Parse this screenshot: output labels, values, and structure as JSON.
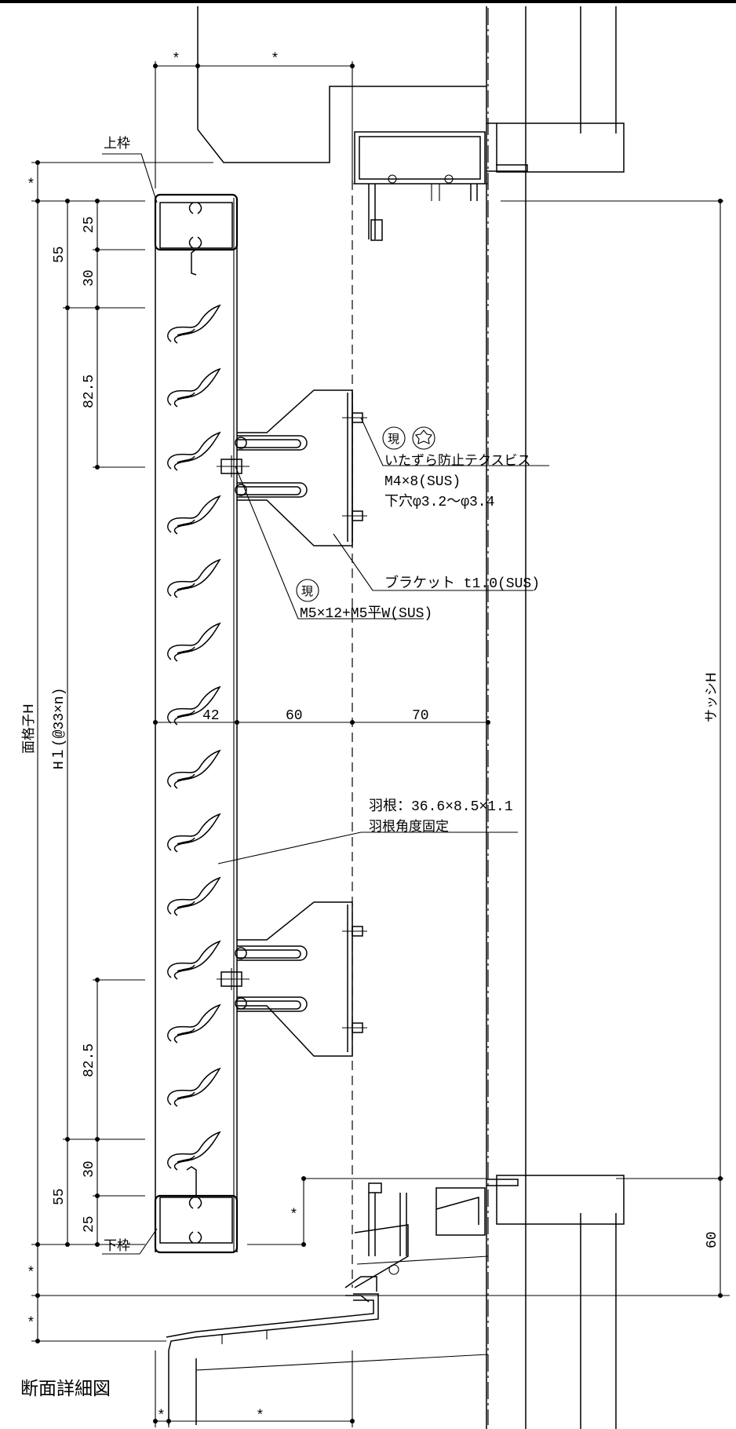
{
  "title": "断面詳細図",
  "labels": {
    "top_frame": "上枠",
    "bottom_frame": "下枠",
    "lattice_h": "面格子H",
    "h1": "H１(@33×n)",
    "sash_h": "サッシH",
    "genba": "現",
    "screw_name": "いたずら防止テクスビス",
    "screw_size": "M4×8(SUS)",
    "pilot_hole": "下穴φ3.2～φ3.4",
    "bracket": "ブラケット t1.0(SUS)",
    "bolt": "M5×12+M5平W(SUS)",
    "blade": "羽根：36.6×8.5×1.1",
    "blade_fixed": "羽根角度固定",
    "asterisk": "*"
  },
  "dims": {
    "d25": "25",
    "d30": "30",
    "d55": "55",
    "d82_5": "82.5",
    "d42": "42",
    "d60": "60",
    "d70": "70",
    "d60b": "60"
  },
  "colors": {
    "line": "#000000",
    "background": "#ffffff"
  }
}
